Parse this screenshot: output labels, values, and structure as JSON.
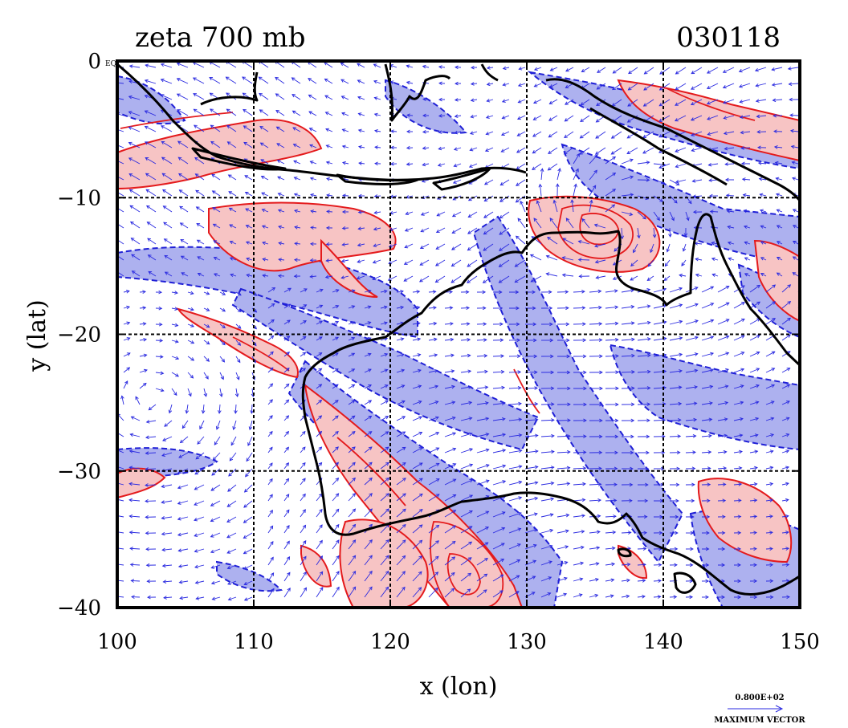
{
  "chart_data": {
    "type": "contour-vector-map",
    "title": "zeta 700 mb",
    "date_label": "030118",
    "xlabel": "x (lon)",
    "ylabel": "y (lat)",
    "xlim": [
      100,
      150
    ],
    "ylim": [
      -40,
      0
    ],
    "x_ticks": [
      100,
      110,
      120,
      130,
      140,
      150
    ],
    "x_tick_labels": [
      "100",
      "110",
      "120",
      "130",
      "140",
      "150"
    ],
    "y_ticks": [
      0,
      -10,
      -20,
      -30,
      -40
    ],
    "y_tick_labels": [
      "0",
      "−10",
      "−20",
      "−30",
      "−40"
    ],
    "y_tick_suffix": "EQ",
    "grid": true,
    "legend": {
      "vector_magnitude": "0.800E+02",
      "vector_label": "MAXIMUM VECTOR"
    },
    "series": [
      {
        "kind": "positive vorticity contours",
        "color": "#e41a1c",
        "fill": "#f7c4c4"
      },
      {
        "kind": "negative vorticity contours",
        "color": "#1f1fd6",
        "fill": "#adb1ef"
      },
      {
        "kind": "wind vectors",
        "color": "#2a2ae0"
      },
      {
        "kind": "coastline",
        "color": "#000000"
      }
    ]
  }
}
